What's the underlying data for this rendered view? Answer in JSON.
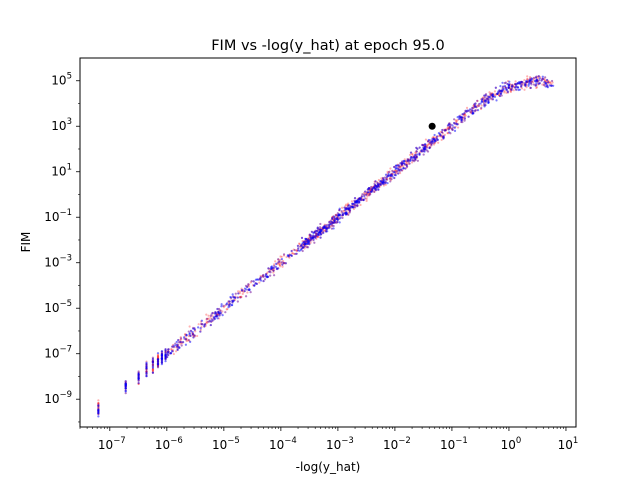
{
  "chart_data": {
    "type": "scatter",
    "title": "FIM vs -log(y_hat) at epoch 95.0",
    "xlabel": "-log(y_hat)",
    "ylabel": "FIM",
    "x_scale": "log",
    "y_scale": "log",
    "xlim": [
      3e-08,
      15
    ],
    "ylim": [
      6e-11,
      1000000.0
    ],
    "x_ticks": [
      {
        "base": "10",
        "exp": "−7",
        "value": 1e-07
      },
      {
        "base": "10",
        "exp": "−6",
        "value": 1e-06
      },
      {
        "base": "10",
        "exp": "−5",
        "value": 1e-05
      },
      {
        "base": "10",
        "exp": "−4",
        "value": 0.0001
      },
      {
        "base": "10",
        "exp": "−3",
        "value": 0.001
      },
      {
        "base": "10",
        "exp": "−2",
        "value": 0.01
      },
      {
        "base": "10",
        "exp": "−1",
        "value": 0.1
      },
      {
        "base": "10",
        "exp": "0",
        "value": 1
      },
      {
        "base": "10",
        "exp": "1",
        "value": 10
      }
    ],
    "y_ticks": [
      {
        "base": "10",
        "exp": "−9",
        "value": 1e-09
      },
      {
        "base": "10",
        "exp": "−7",
        "value": 1e-07
      },
      {
        "base": "10",
        "exp": "−5",
        "value": 1e-05
      },
      {
        "base": "10",
        "exp": "−3",
        "value": 0.001
      },
      {
        "base": "10",
        "exp": "−1",
        "value": 0.1
      },
      {
        "base": "10",
        "exp": "1",
        "value": 10
      },
      {
        "base": "10",
        "exp": "3",
        "value": 1000
      },
      {
        "base": "10",
        "exp": "5",
        "value": 100000
      }
    ],
    "grid": false,
    "legend": "none",
    "series": [
      {
        "color": "#ff0000",
        "alpha": 0.3,
        "trend": {
          "x_range": [
            6e-08,
            6.0
          ],
          "log_slope": 2,
          "log_intercept": 5.0,
          "log_scatter": 0.18,
          "count": 1400
        }
      },
      {
        "color": "#0000ff",
        "alpha": 0.3,
        "trend": {
          "x_range": [
            6e-08,
            6.0
          ],
          "log_slope": 2,
          "log_intercept": 5.0,
          "log_scatter": 0.18,
          "count": 1800
        }
      }
    ],
    "highlight_point": {
      "x": 0.045,
      "y": 1000,
      "color": "#000000"
    }
  }
}
